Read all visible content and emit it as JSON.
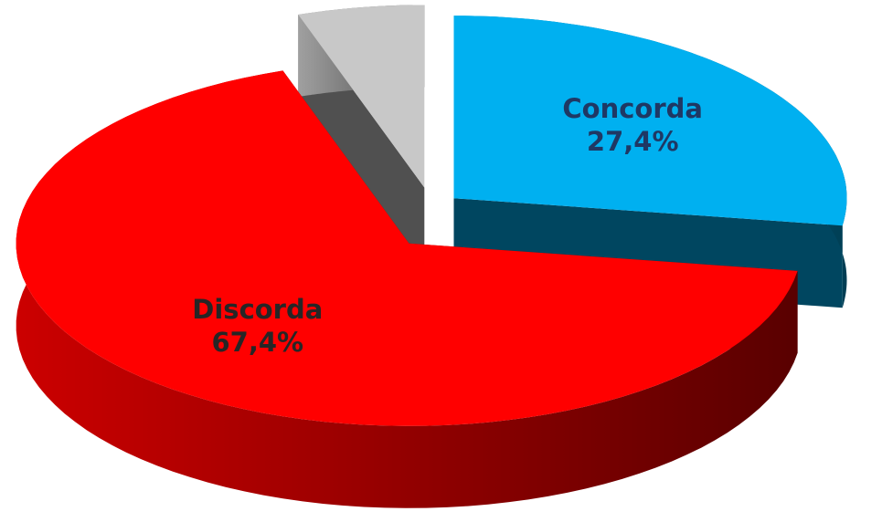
{
  "chart_data": {
    "type": "pie",
    "categories": [
      "Concorda",
      "Discorda",
      null
    ],
    "values": [
      27.4,
      67.4,
      5.2
    ],
    "value_labels": [
      "27,4%",
      "67,4%",
      null
    ],
    "colors": [
      "#00b0f0",
      "#ff0000",
      "#c8c8c8"
    ],
    "start_angle": 0,
    "direction": "clockwise",
    "exploded": true,
    "three_d": true
  }
}
